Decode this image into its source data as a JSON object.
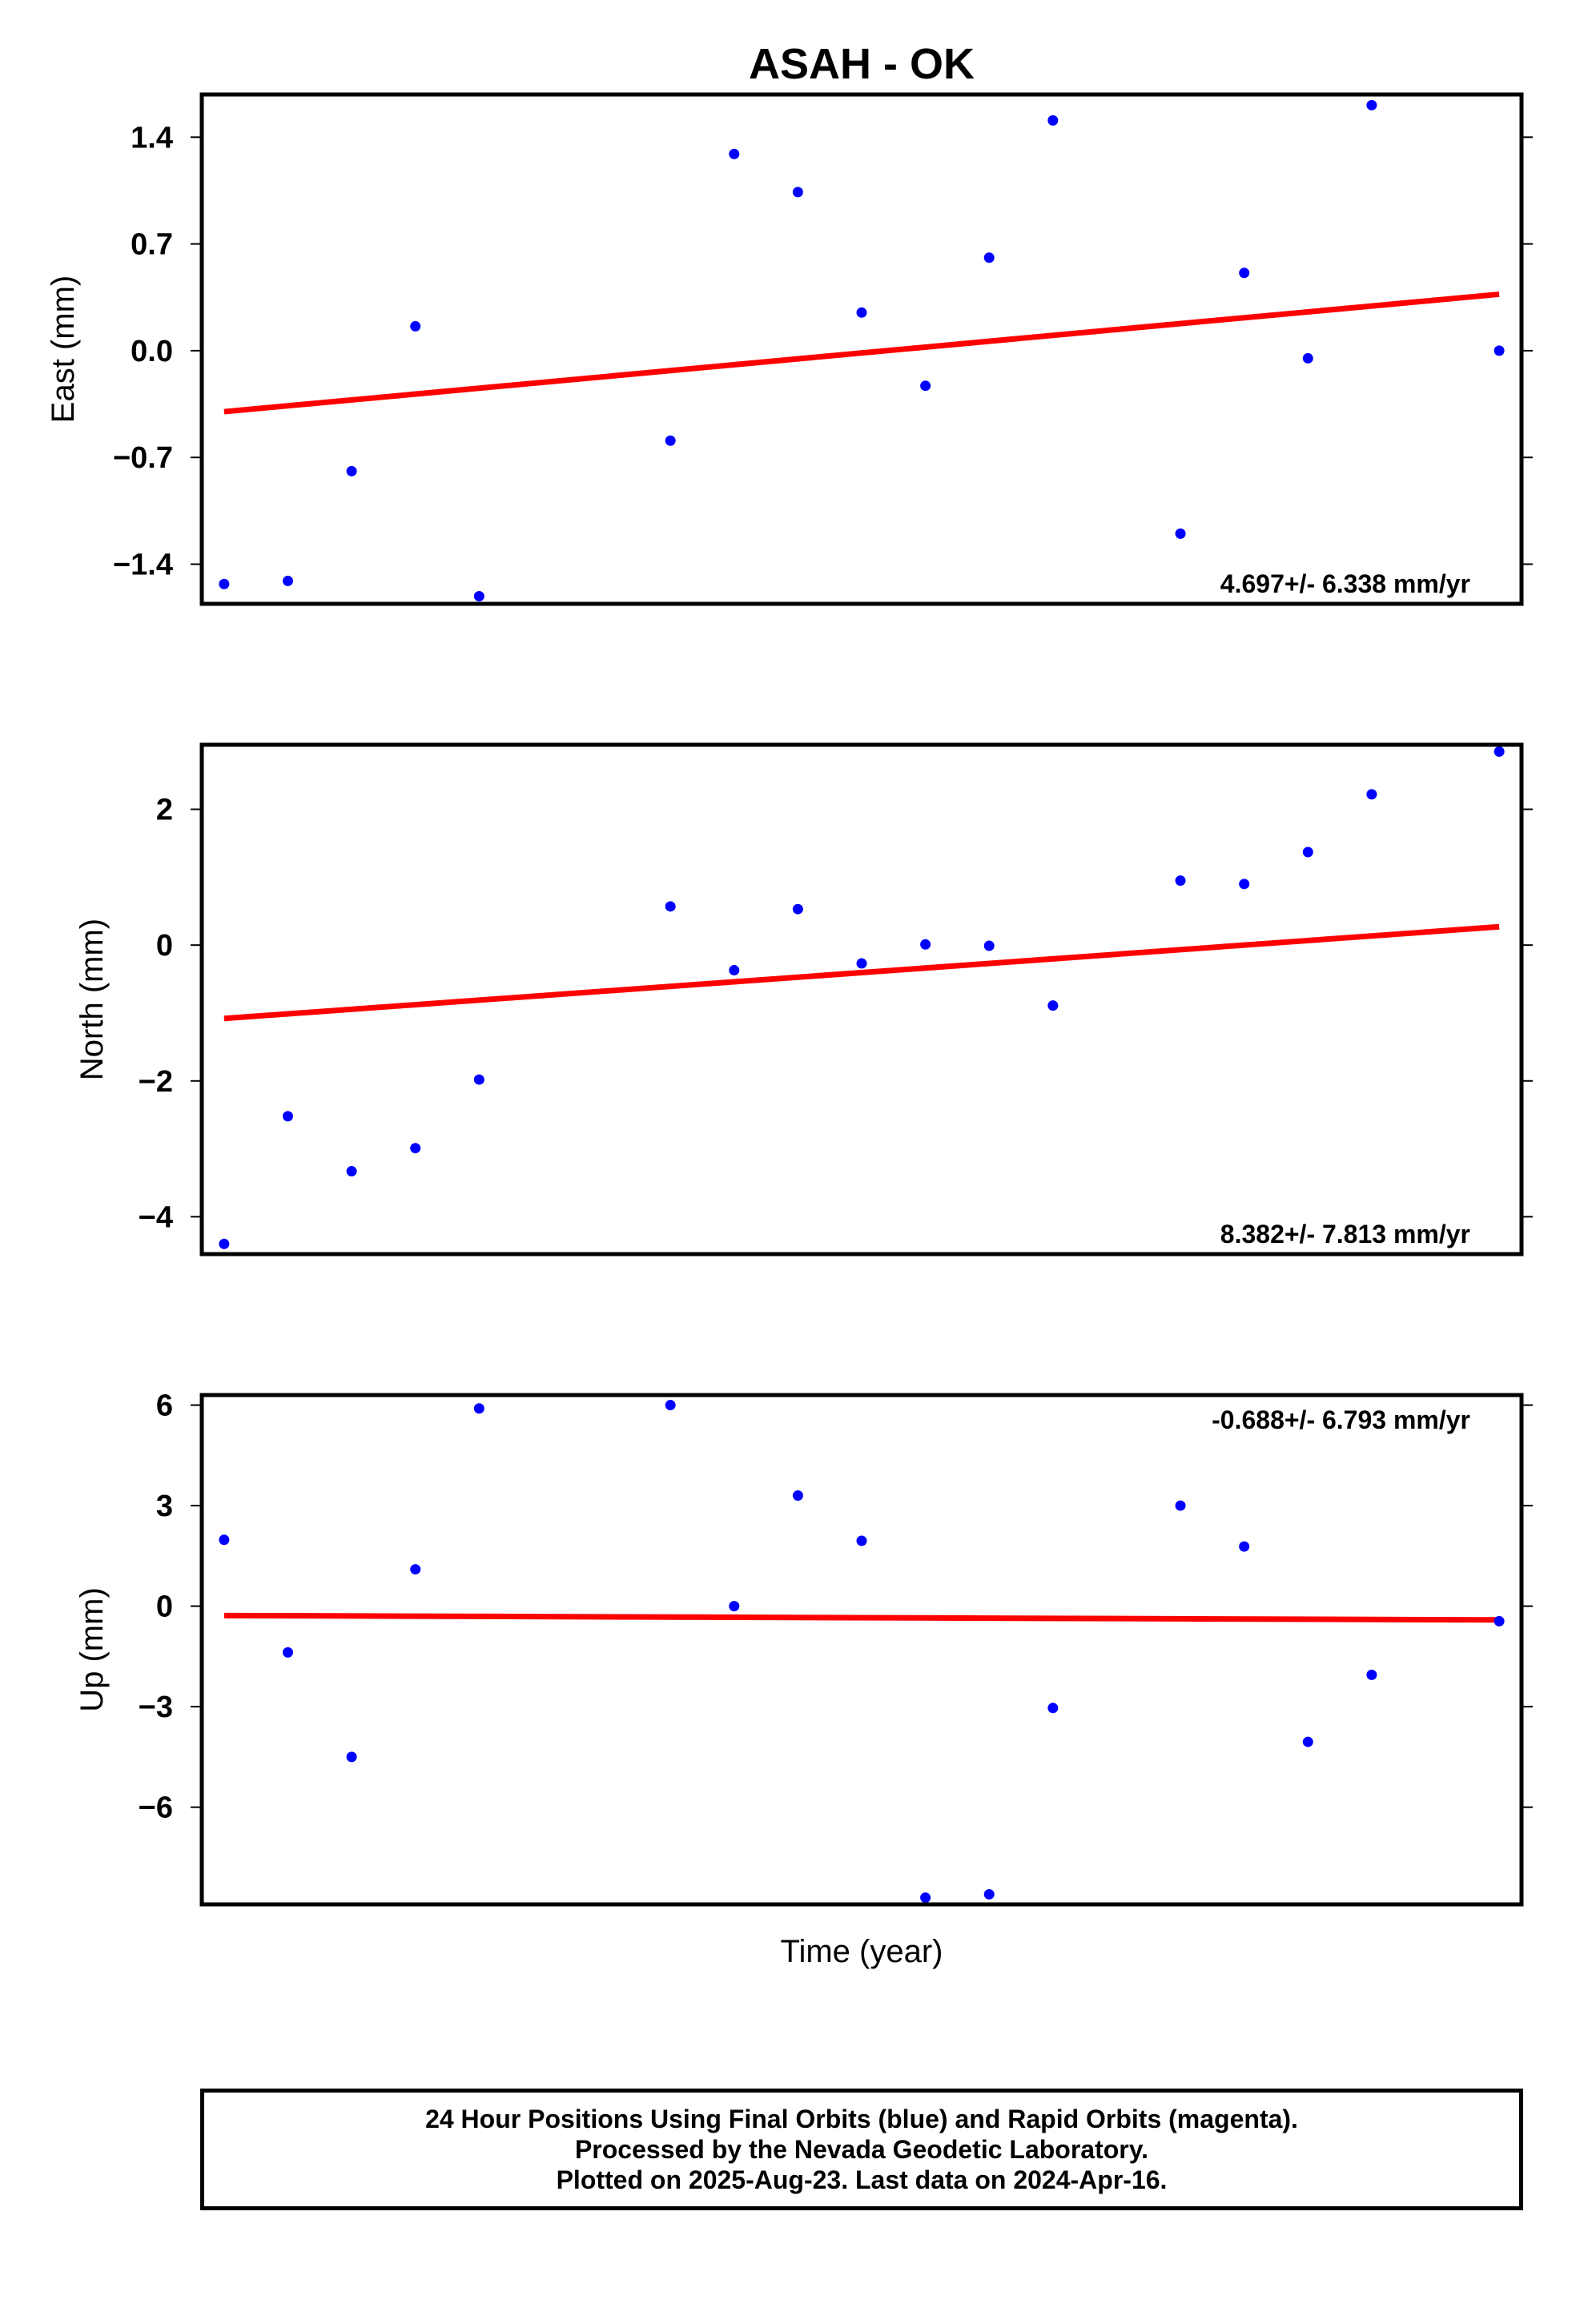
{
  "title": "ASAH - OK",
  "xlabel": "Time (year)",
  "footer": {
    "line1": "24 Hour Positions Using Final Orbits (blue) and Rapid Orbits (magenta).",
    "line2": "Processed by the Nevada Geodetic Laboratory.",
    "line3": "Plotted on 2025-Aug-23. Last data on 2024-Apr-16."
  },
  "colors": {
    "points": "#0000ff",
    "trend": "#ff0000",
    "frame": "#000000"
  },
  "chart_data": [
    {
      "type": "scatter",
      "ylabel": "East (mm)",
      "rate": "4.697+/- 6.338 mm/yr",
      "rate_position": "bottom-right",
      "ylim": [
        -1.66,
        1.68
      ],
      "yticks": [
        1.4,
        0.7,
        0.0,
        -0.7,
        -1.4
      ],
      "ytick_labels": [
        "1.4",
        "0.7",
        "0.0",
        "−0.7",
        "−1.4"
      ],
      "xlim": [
        -0.35,
        20.35
      ],
      "x": [
        0,
        1,
        2,
        3,
        4,
        7,
        8,
        9,
        10,
        11,
        12,
        13,
        15,
        16,
        17,
        18,
        20
      ],
      "y": [
        -1.53,
        -1.51,
        -0.79,
        0.16,
        -1.61,
        -0.59,
        1.29,
        1.04,
        0.25,
        -0.23,
        0.61,
        1.51,
        -1.2,
        0.51,
        -0.05,
        1.61,
        0.0
      ],
      "trend": {
        "x": [
          0,
          20
        ],
        "y": [
          -0.4,
          0.37
        ]
      }
    },
    {
      "type": "scatter",
      "ylabel": "North (mm)",
      "rate": "8.382+/- 7.813 mm/yr",
      "rate_position": "bottom-right",
      "ylim": [
        -4.55,
        2.95
      ],
      "yticks": [
        2,
        0,
        -2,
        -4
      ],
      "ytick_labels": [
        "2",
        "0",
        "−2",
        "−4"
      ],
      "xlim": [
        -0.35,
        20.35
      ],
      "x": [
        0,
        1,
        2,
        3,
        4,
        7,
        8,
        9,
        10,
        11,
        12,
        13,
        15,
        16,
        17,
        18,
        20
      ],
      "y": [
        -4.4,
        -2.52,
        -3.33,
        -2.99,
        -1.98,
        0.57,
        -0.37,
        0.53,
        -0.27,
        0.01,
        -0.01,
        -0.89,
        0.95,
        0.9,
        1.37,
        2.22,
        2.85
      ],
      "trend": {
        "x": [
          0,
          20
        ],
        "y": [
          -1.08,
          0.27
        ]
      }
    },
    {
      "type": "scatter",
      "ylabel": "Up (mm)",
      "rate": "-0.688+/- 6.793 mm/yr",
      "rate_position": "top-right",
      "ylim": [
        -8.9,
        6.3
      ],
      "yticks": [
        6,
        3,
        0,
        -3,
        -6
      ],
      "ytick_labels": [
        "6",
        "3",
        "0",
        "−3",
        "−6"
      ],
      "xlim": [
        -0.35,
        20.35
      ],
      "x": [
        0,
        1,
        2,
        3,
        4,
        7,
        8,
        9,
        10,
        11,
        12,
        13,
        15,
        16,
        17,
        18,
        20
      ],
      "y": [
        1.98,
        -1.38,
        -4.5,
        1.1,
        5.9,
        6.0,
        0.0,
        3.3,
        1.95,
        -8.7,
        -8.6,
        -3.04,
        3.0,
        1.78,
        -4.05,
        -2.05,
        -0.45
      ],
      "trend": {
        "x": [
          0,
          20
        ],
        "y": [
          -0.28,
          -0.41
        ]
      }
    }
  ]
}
